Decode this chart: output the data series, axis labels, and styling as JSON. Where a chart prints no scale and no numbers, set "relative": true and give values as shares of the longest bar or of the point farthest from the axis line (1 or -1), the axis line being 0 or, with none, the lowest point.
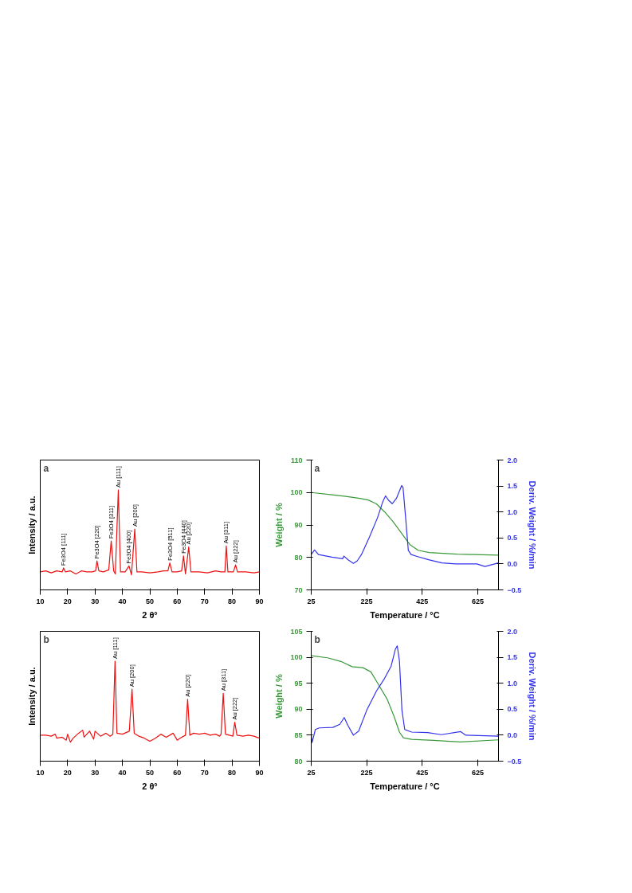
{
  "chart_data": [
    {
      "type": "line",
      "relative": true,
      "xlabel": "2 θ°",
      "ylabel": "Intensity / a.u.",
      "xlim": [
        10,
        90
      ],
      "xticks": [
        10,
        20,
        30,
        40,
        50,
        60,
        70,
        80,
        90
      ],
      "tick_labels": "x",
      "grid": false,
      "series": [
        {
          "color": "#ee1111",
          "x": [
            10,
            12,
            14,
            16,
            18,
            18.5,
            19.2,
            21,
            23,
            25,
            27,
            29,
            30.2,
            30.7,
            31.4,
            33,
            35,
            35.9,
            36.8,
            37.4,
            38.5,
            39.3,
            41,
            42.4,
            43.3,
            44.5,
            45.3,
            47,
            50,
            53,
            55,
            56.6,
            57.3,
            58.1,
            60,
            61.6,
            62.3,
            63.0,
            64.2,
            65,
            68,
            71,
            74,
            76,
            77.4,
            77.9,
            78.5,
            80.5,
            81.3,
            82,
            85,
            88,
            90
          ],
          "values": [
            0.18,
            0.19,
            0.17,
            0.19,
            0.18,
            0.22,
            0.18,
            0.19,
            0.16,
            0.19,
            0.18,
            0.18,
            0.19,
            0.29,
            0.19,
            0.18,
            0.2,
            0.49,
            0.19,
            0.16,
            1.0,
            0.18,
            0.18,
            0.24,
            0.15,
            0.61,
            0.18,
            0.18,
            0.17,
            0.18,
            0.19,
            0.19,
            0.27,
            0.18,
            0.18,
            0.19,
            0.34,
            0.16,
            0.43,
            0.18,
            0.18,
            0.17,
            0.19,
            0.18,
            0.18,
            0.44,
            0.18,
            0.18,
            0.25,
            0.18,
            0.18,
            0.17,
            0.18
          ]
        }
      ],
      "annotations": [
        "a",
        {
          "text": "Fe3O4 [111]",
          "x": 18.5,
          "y": 0.22
        },
        {
          "text": "Fe3O4 [220]",
          "x": 30.7,
          "y": 0.29
        },
        {
          "text": "Fe3O4 [311]",
          "x": 35.9,
          "y": 0.49
        },
        {
          "text": "Au [111]",
          "x": 38.5,
          "y": 1.0
        },
        {
          "text": "Fe3O4 [400]",
          "x": 42.4,
          "y": 0.24
        },
        {
          "text": "Au [200]",
          "x": 44.5,
          "y": 0.61
        },
        {
          "text": "Fe3O4 [511]",
          "x": 57.3,
          "y": 0.27
        },
        {
          "text": "Fe3O4 [440]",
          "x": 62.3,
          "y": 0.34
        },
        {
          "text": "Au [220]",
          "x": 64.2,
          "y": 0.43
        },
        {
          "text": "Au [311]",
          "x": 77.9,
          "y": 0.44
        },
        {
          "text": "Au [222]",
          "x": 81.3,
          "y": 0.25
        }
      ]
    },
    {
      "type": "line",
      "xlabel": "Temperature / °C",
      "ylabel": "Weight / %",
      "y2label": "Deriv. Weight / %/min",
      "xlim": [
        25,
        700
      ],
      "xticks": [
        25,
        225,
        425,
        625
      ],
      "ylim": [
        70,
        110
      ],
      "yticks": [
        70,
        80,
        90,
        100,
        110
      ],
      "y2lim": [
        -0.5,
        2.0
      ],
      "y2ticks": [
        -0.5,
        {
          "value": 0,
          "label": "0.0"
        },
        0.5,
        {
          "value": 1,
          "label": "1.0"
        },
        1.5,
        {
          "value": 2,
          "label": "2.0"
        }
      ],
      "grid": false,
      "series": [
        {
          "color": "#3a9a3a",
          "x": [
            25,
            100,
            150,
            200,
            230,
            260,
            290,
            320,
            350,
            380,
            410,
            450,
            550,
            700
          ],
          "values": [
            100.0,
            99.3,
            98.8,
            98.2,
            97.7,
            96.5,
            94,
            91,
            87.5,
            84,
            82.2,
            81.5,
            81,
            80.7
          ]
        },
        {
          "color": "#3333ee",
          "axis": "y2",
          "x": [
            25,
            37,
            51,
            100,
            138,
            143,
            158,
            177,
            191,
            206,
            235,
            264,
            283,
            293,
            303,
            317,
            332,
            351,
            356,
            366,
            375,
            385,
            409,
            448,
            496,
            545,
            622,
            651,
            700
          ],
          "values": [
            0.18,
            0.27,
            0.18,
            0.13,
            0.1,
            0.15,
            0.08,
            0.01,
            0.06,
            0.18,
            0.52,
            0.89,
            1.2,
            1.31,
            1.23,
            1.16,
            1.26,
            1.51,
            1.47,
            0.84,
            0.26,
            0.18,
            0.14,
            0.08,
            0.02,
            0.0,
            0.0,
            -0.05,
            0.02
          ]
        }
      ],
      "annotations": [
        "a"
      ]
    },
    {
      "type": "line",
      "relative": true,
      "xlabel": "2 θ°",
      "ylabel": "Intensity / a.u.",
      "xlim": [
        10,
        90
      ],
      "xticks": [
        10,
        20,
        30,
        40,
        50,
        60,
        70,
        80,
        90
      ],
      "tick_labels": "x",
      "grid": false,
      "series": [
        {
          "color": "#ee1111",
          "x": [
            10,
            12,
            14,
            15.5,
            16,
            18,
            19.5,
            20,
            21,
            22,
            24,
            25.5,
            26,
            28,
            29.5,
            30,
            32,
            34,
            35.5,
            36.5,
            37.3,
            38,
            40,
            42.5,
            43.5,
            44.3,
            46,
            48,
            50,
            52,
            54,
            56,
            58.5,
            60,
            61,
            63,
            63.8,
            64.6,
            66,
            68,
            70,
            72,
            74,
            75.5,
            76,
            76.8,
            77.6,
            79,
            80.3,
            81.0,
            81.8,
            84,
            86,
            88,
            90
          ],
          "values": [
            0.26,
            0.26,
            0.25,
            0.27,
            0.23,
            0.24,
            0.21,
            0.27,
            0.19,
            0.23,
            0.28,
            0.31,
            0.24,
            0.3,
            0.22,
            0.3,
            0.25,
            0.28,
            0.25,
            0.27,
            1.0,
            0.28,
            0.27,
            0.3,
            0.72,
            0.28,
            0.25,
            0.23,
            0.2,
            0.23,
            0.27,
            0.24,
            0.28,
            0.21,
            0.23,
            0.26,
            0.62,
            0.26,
            0.28,
            0.27,
            0.28,
            0.26,
            0.27,
            0.25,
            0.27,
            0.68,
            0.27,
            0.26,
            0.25,
            0.39,
            0.26,
            0.25,
            0.26,
            0.25,
            0.23
          ]
        }
      ],
      "annotations": [
        "b",
        {
          "text": "Au [111]",
          "x": 37.3,
          "y": 1.0
        },
        {
          "text": "Au [200]",
          "x": 43.5,
          "y": 0.72
        },
        {
          "text": "Au [220]",
          "x": 63.8,
          "y": 0.62
        },
        {
          "text": "Au [311]",
          "x": 76.8,
          "y": 0.68
        },
        {
          "text": "Au [222]",
          "x": 81.0,
          "y": 0.39
        }
      ]
    },
    {
      "type": "line",
      "xlabel": "Temperature / °C",
      "ylabel": "Weight / %",
      "y2label": "Deriv. Weight / %/min",
      "xlim": [
        25,
        700
      ],
      "xticks": [
        25,
        225,
        425,
        625
      ],
      "ylim": [
        80,
        105
      ],
      "yticks": [
        80,
        85,
        90,
        95,
        100,
        105
      ],
      "y2lim": [
        -0.5,
        2.0
      ],
      "y2ticks": [
        -0.5,
        {
          "value": 0,
          "label": "0.0"
        },
        0.5,
        {
          "value": 1,
          "label": "1.0"
        },
        1.5,
        {
          "value": 2,
          "label": "2.0"
        }
      ],
      "grid": false,
      "series": [
        {
          "color": "#3a9a3a",
          "x": [
            25,
            84,
            132,
            172,
            211,
            240,
            269,
            299,
            323,
            343,
            357,
            387,
            465,
            563,
            700
          ],
          "values": [
            100.3,
            99.9,
            99.2,
            98.2,
            98.0,
            97.2,
            94.6,
            91.9,
            88.7,
            85.6,
            84.5,
            84.2,
            84.0,
            83.7,
            84.1
          ]
        },
        {
          "color": "#3333ee",
          "axis": "y2",
          "x": [
            25,
            28,
            40,
            54,
            103,
            128,
            144,
            157,
            177,
            196,
            225,
            260,
            289,
            313,
            328,
            335,
            343,
            352,
            362,
            387,
            445,
            494,
            563,
            582,
            700
          ],
          "values": [
            0.0,
            -0.14,
            0.11,
            0.14,
            0.15,
            0.21,
            0.34,
            0.19,
            0.0,
            0.08,
            0.48,
            0.85,
            1.09,
            1.33,
            1.65,
            1.72,
            1.43,
            0.48,
            0.11,
            0.06,
            0.05,
            0.01,
            0.07,
            0.0,
            -0.02
          ]
        }
      ],
      "annotations": [
        "b"
      ]
    }
  ]
}
